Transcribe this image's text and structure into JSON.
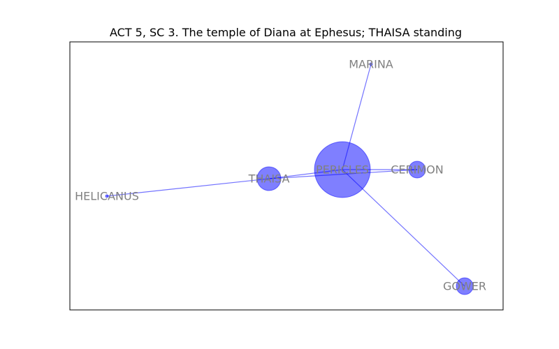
{
  "figure": {
    "title": "ACT 5, SC 3. The temple of Diana at Ephesus; THAISA standing"
  },
  "colors": {
    "node_fill": "#0000ff",
    "edge": "#0000ff",
    "label": "#808080",
    "frame": "#000000"
  },
  "nodes": [
    {
      "id": "PERICLES",
      "label": "PERICLES",
      "size": "large"
    },
    {
      "id": "MARINA",
      "label": "MARINA",
      "size": "tiny"
    },
    {
      "id": "CERIMON",
      "label": "CERIMON",
      "size": "small"
    },
    {
      "id": "THAISA",
      "label": "THAISA",
      "size": "medium"
    },
    {
      "id": "HELICANUS",
      "label": "HELICANUS",
      "size": "tiny"
    },
    {
      "id": "GOWER",
      "label": "GOWER",
      "size": "small"
    }
  ],
  "edges": [
    {
      "source": "PERICLES",
      "target": "MARINA"
    },
    {
      "source": "PERICLES",
      "target": "CERIMON"
    },
    {
      "source": "PERICLES",
      "target": "THAISA"
    },
    {
      "source": "PERICLES",
      "target": "GOWER"
    },
    {
      "source": "THAISA",
      "target": "CERIMON"
    },
    {
      "source": "THAISA",
      "target": "HELICANUS"
    }
  ]
}
